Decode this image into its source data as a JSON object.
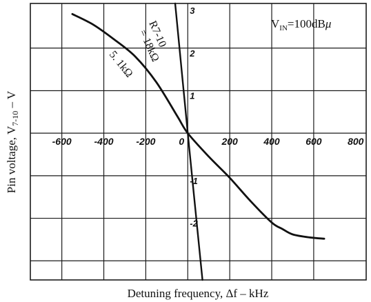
{
  "chart_data": {
    "type": "line",
    "title": "",
    "annotation": {
      "prefix": "V",
      "sub": "IN",
      "suffix": "=100dB",
      "mu": "μ"
    },
    "xlabel": "Detuning frequency, Δf   –   kHz",
    "ylabel": {
      "main": "Pin voltage, V",
      "sub": "7-10",
      "unit": "   –   V"
    },
    "xlim": [
      -750,
      850
    ],
    "ylim": [
      -3.45,
      3.05
    ],
    "x_ticks": [
      {
        "v": -600,
        "label": "-600"
      },
      {
        "v": -400,
        "label": "-400"
      },
      {
        "v": -200,
        "label": "-200"
      },
      {
        "v": 0,
        "label": "0"
      },
      {
        "v": 200,
        "label": "200"
      },
      {
        "v": 400,
        "label": "400"
      },
      {
        "v": 600,
        "label": "600"
      },
      {
        "v": 800,
        "label": "800"
      }
    ],
    "y_ticks": [
      {
        "v": 3,
        "label": "3"
      },
      {
        "v": 2,
        "label": "2"
      },
      {
        "v": 1,
        "label": "1"
      },
      {
        "v": -1,
        "label": "-1"
      },
      {
        "v": -2,
        "label": "-2"
      }
    ],
    "gridlines_x": [
      -600,
      -400,
      -200,
      0,
      200,
      400,
      600
    ],
    "gridlines_y": [
      2,
      1,
      0,
      -1,
      -2,
      -3
    ],
    "grid": true,
    "series": [
      {
        "name": "R7-10 = 18kΩ",
        "label": {
          "line1": "R7-10",
          "line2": "= 18kΩ"
        },
        "x": [
          -60,
          0,
          70
        ],
        "y": [
          3.05,
          0.0,
          -3.45
        ]
      },
      {
        "name": "5.1kΩ",
        "label": {
          "line1": "5. 1kΩ"
        },
        "x": [
          -550,
          -450,
          -350,
          -250,
          -150,
          -50,
          0,
          100,
          200,
          300,
          400,
          450,
          500,
          580,
          650
        ],
        "y": [
          2.8,
          2.55,
          2.2,
          1.8,
          1.2,
          0.4,
          0.0,
          -0.55,
          -1.05,
          -1.6,
          -2.1,
          -2.25,
          -2.38,
          -2.45,
          -2.48
        ]
      }
    ]
  }
}
